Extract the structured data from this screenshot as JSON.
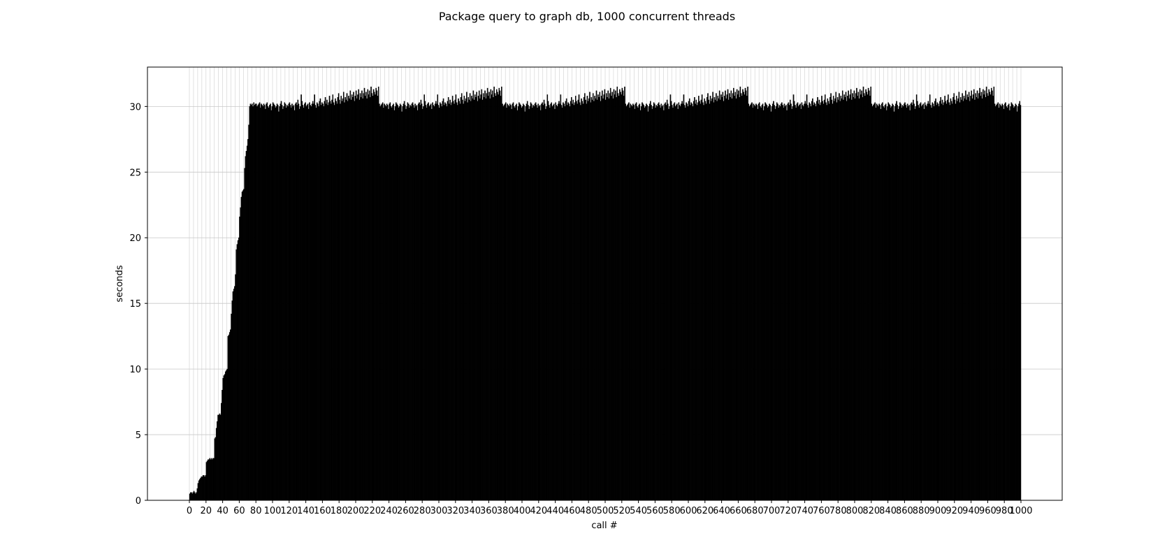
{
  "chart_data": {
    "type": "bar",
    "title": "Package query to graph db, 1000 concurrent threads",
    "xlabel": "call #",
    "ylabel": "seconds",
    "x_range": [
      0,
      1000
    ],
    "ylim": [
      0,
      33
    ],
    "x_ticks": [
      0,
      20,
      40,
      60,
      80,
      100,
      120,
      140,
      160,
      180,
      200,
      220,
      240,
      260,
      280,
      300,
      320,
      340,
      360,
      380,
      400,
      420,
      440,
      460,
      480,
      500,
      520,
      540,
      560,
      580,
      600,
      620,
      640,
      660,
      680,
      700,
      720,
      740,
      760,
      780,
      800,
      820,
      840,
      860,
      880,
      900,
      920,
      940,
      960,
      980,
      1000
    ],
    "y_ticks": [
      0,
      5,
      10,
      15,
      20,
      25,
      30
    ],
    "grid": true,
    "legend": "none",
    "bar_color": "#000000",
    "series": [
      {
        "values_by_ten": [
          [
            0.5,
            0.6,
            0.6,
            0.5,
            0.6,
            0.7,
            0.6,
            0.5,
            0.6,
            0.9
          ],
          [
            1.3,
            1.5,
            1.6,
            1.7,
            1.8,
            1.8,
            1.9,
            1.9,
            1.8,
            1.9
          ],
          [
            2.9,
            3.0,
            3.1,
            3.1,
            3.2,
            3.1,
            3.2,
            3.1,
            3.2,
            3.2
          ],
          [
            4.7,
            4.8,
            5.5,
            6.0,
            6.5,
            6.5,
            6.6,
            6.5,
            7.4,
            8.4
          ],
          [
            9.3,
            9.5,
            9.6,
            9.8,
            9.9,
            10.0,
            12.5,
            12.6,
            12.8,
            13.0
          ],
          [
            14.2,
            15.2,
            15.9,
            16.1,
            16.3,
            17.2,
            19.1,
            19.5,
            19.8,
            20.0
          ],
          [
            21.6,
            22.3,
            23.1,
            23.5,
            23.6,
            23.7,
            25.3,
            26.2,
            26.6,
            27.0
          ],
          [
            27.5,
            28.6,
            30.0,
            30.2,
            30.1,
            30.2,
            30.0,
            30.3,
            30.1,
            30.2
          ]
        ],
        "plateau_values": [
          30.2,
          30.0,
          30.1,
          30.2,
          30.3,
          29.9,
          30.2,
          30.1,
          30.0,
          30.2,
          30.1,
          29.8,
          30.2,
          30.3,
          30.0,
          29.9,
          30.1,
          30.2,
          29.7,
          30.0,
          30.3,
          30.2,
          30.1,
          29.9,
          30.0,
          30.2,
          30.1,
          29.6,
          30.0,
          30.2,
          30.4,
          30.1,
          29.8,
          30.0,
          30.3,
          30.2,
          29.9,
          30.1,
          30.0,
          30.2,
          30.3,
          30.1,
          29.9,
          30.2,
          30.0,
          30.1,
          29.7,
          30.2,
          30.3,
          30.1,
          30.5,
          30.2,
          29.8,
          30.0,
          30.9,
          30.4,
          30.1,
          29.9,
          30.2,
          30.3,
          30.0,
          30.1,
          30.2,
          29.8,
          30.3,
          30.1,
          30.0,
          30.2,
          30.4,
          30.2,
          30.9,
          30.1,
          29.9,
          30.3,
          30.2,
          30.0,
          30.4,
          30.6,
          30.1,
          30.3,
          30.2,
          30.0,
          30.4,
          30.7,
          30.2,
          30.5,
          30.1,
          30.3,
          30.8,
          30.4,
          30.2,
          30.5,
          30.9,
          30.3,
          30.1,
          30.6,
          30.4,
          30.2,
          30.7,
          31.0,
          30.5,
          30.2,
          30.8,
          30.4,
          30.6,
          31.1,
          30.3,
          30.7,
          30.5,
          31.0,
          30.4,
          30.8,
          30.6,
          31.2,
          30.5,
          30.9,
          30.7,
          31.1,
          30.4,
          30.8,
          31.2,
          30.6,
          30.9,
          31.3,
          30.5,
          31.0,
          30.7,
          31.2,
          30.6,
          31.0,
          31.4,
          30.8,
          31.1,
          30.6,
          31.3,
          30.9,
          31.2,
          30.7,
          31.5,
          31.0,
          30.8,
          31.3,
          31.1,
          30.9,
          31.4,
          31.2,
          30.8,
          31.5
        ]
      }
    ]
  }
}
